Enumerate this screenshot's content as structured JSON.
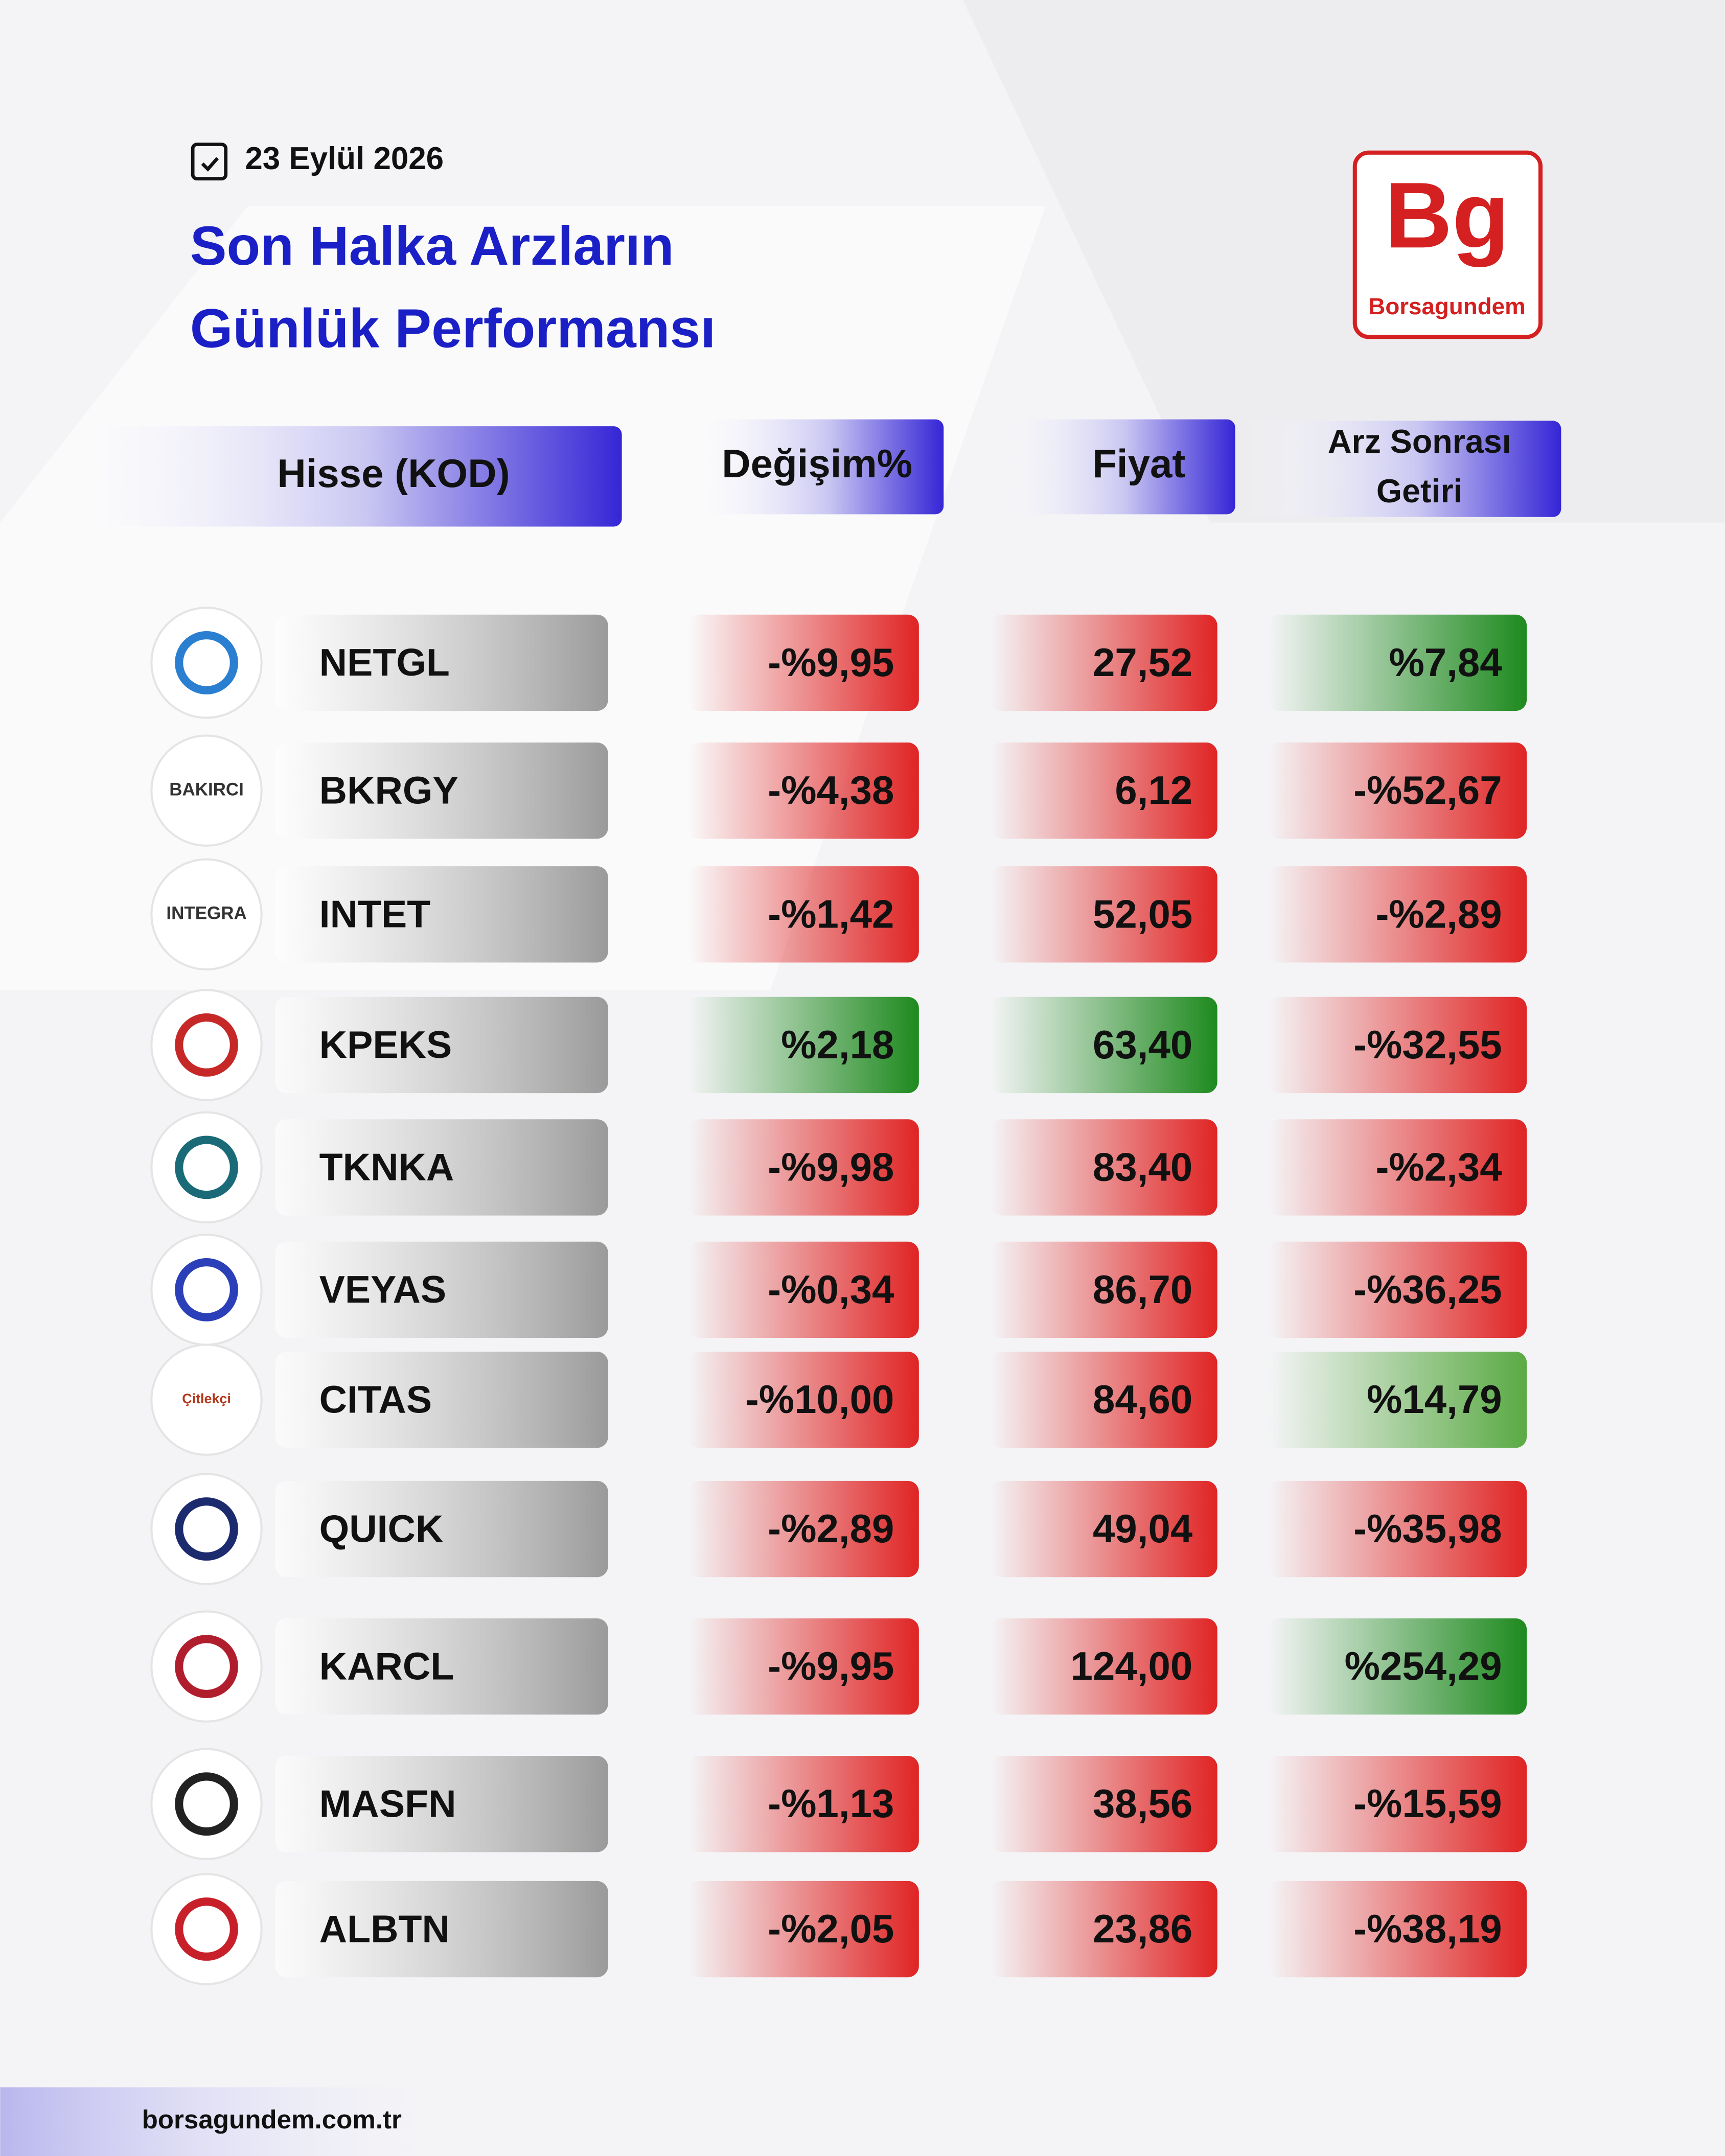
{
  "header": {
    "date": "23 Eylül 2026",
    "title": [
      "Son Halka Arzların",
      "Günlük Performansı"
    ],
    "logo": {
      "mark": "Bg",
      "name": "Borsagundem"
    }
  },
  "table": {
    "columns": [
      [
        "Hisse (KOD)"
      ],
      [
        "Değişim%"
      ],
      [
        "Fiyat"
      ],
      [
        "Arz Sonrası",
        "Getiri"
      ]
    ],
    "rows": [
      {
        "code": "NETGL",
        "change": "-%9,95",
        "price": "27,52",
        "return": "%7,84",
        "tones": [
          "#e02424",
          "#e02424",
          "#1e8a1e"
        ]
      },
      {
        "code": "BKRGY",
        "logo": "BAKIRCI",
        "change": "-%4,38",
        "price": "6,12",
        "return": "-%52,67",
        "tones": [
          "#e02424",
          "#e02424",
          "#e02424"
        ]
      },
      {
        "code": "INTET",
        "logo": "INTEGRA",
        "change": "-%1,42",
        "price": "52,05",
        "return": "-%2,89",
        "tones": [
          "#e02424",
          "#e02424",
          "#e02424"
        ]
      },
      {
        "code": "KPEKS",
        "change": "%2,18",
        "price": "63,40",
        "return": "-%32,55",
        "tones": [
          "#1e8a1e",
          "#1e8a1e",
          "#e02424"
        ]
      },
      {
        "code": "TKNKA",
        "change": "-%9,98",
        "price": "83,40",
        "return": "-%2,34",
        "tones": [
          "#e02424",
          "#e02424",
          "#e02424"
        ]
      },
      {
        "code": "VEYAS",
        "change": "-%0,34",
        "price": "86,70",
        "return": "-%36,25",
        "tones": [
          "#e02424",
          "#e02424",
          "#e02424"
        ]
      },
      {
        "code": "CITAS",
        "logo": "Çitlekçi",
        "change": "-%10,00",
        "price": "84,60",
        "return": "%14,79",
        "tones": [
          "#e02424",
          "#e02424",
          "#5aaa44"
        ]
      },
      {
        "code": "QUICK",
        "change": "-%2,89",
        "price": "49,04",
        "return": "-%35,98",
        "tones": [
          "#e02424",
          "#e02424",
          "#e02424"
        ]
      },
      {
        "code": "KARCL",
        "change": "-%9,95",
        "price": "124,00",
        "return": "%254,29",
        "tones": [
          "#e02424",
          "#e02424",
          "#1e8a1e"
        ]
      },
      {
        "code": "MASFN",
        "change": "-%1,13",
        "price": "38,56",
        "return": "-%15,59",
        "tones": [
          "#e02424",
          "#e02424",
          "#e02424"
        ]
      },
      {
        "code": "ALBTN",
        "change": "-%2,05",
        "price": "23,86",
        "return": "-%38,19",
        "tones": [
          "#e02424",
          "#e02424",
          "#e02424"
        ]
      }
    ]
  },
  "footer": {
    "url": "borsagundem.com.tr"
  }
}
